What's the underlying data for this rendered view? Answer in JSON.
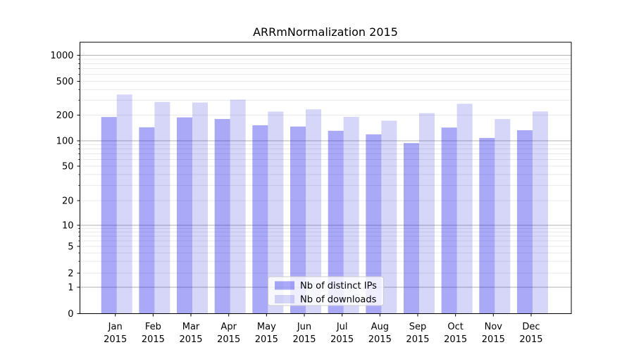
{
  "chart_data": {
    "type": "bar",
    "title": "ARRmNormalization 2015",
    "categories": [
      "Jan 2015",
      "Feb 2015",
      "Mar 2015",
      "Apr 2015",
      "May 2015",
      "Jun 2015",
      "Jul 2015",
      "Aug 2015",
      "Sep 2015",
      "Oct 2015",
      "Nov 2015",
      "Dec 2015"
    ],
    "series": [
      {
        "name": "Nb of distinct IPs",
        "color": "#a8a8f8",
        "fill_rgba": "rgba(10,10,235,0.35)",
        "values": [
          190,
          144,
          188,
          180,
          152,
          147,
          131,
          119,
          94,
          143,
          108,
          133
        ]
      },
      {
        "name": "Nb of downloads",
        "color": "#d8d8f9",
        "fill_rgba": "rgba(0,0,215,0.16)",
        "values": [
          350,
          286,
          281,
          304,
          220,
          234,
          191,
          172,
          211,
          272,
          180,
          221
        ]
      }
    ],
    "xlabel": "",
    "ylabel": "",
    "y_scale": "symlog",
    "ylim": [
      0,
      1450
    ],
    "yticks": [
      0,
      1,
      2,
      5,
      10,
      20,
      50,
      100,
      200,
      500,
      1000
    ],
    "y_major_gridlines": [
      1,
      10,
      100,
      1000
    ],
    "y_minor_gridlines": [
      3,
      4,
      6,
      7,
      8,
      9,
      30,
      40,
      60,
      70,
      80,
      90,
      300,
      400,
      600,
      700,
      800,
      900
    ],
    "grid": "on",
    "legend": {
      "position": "lower center",
      "labels": [
        "Nb of distinct IPs",
        "Nb of downloads"
      ]
    },
    "colors": {
      "major_grid": "#b2b2b2",
      "minor_grid": "#eaeaea",
      "axis": "#000000",
      "legend_border": "#cccccc",
      "legend_bg": "rgba(255,255,255,0.8)"
    }
  }
}
